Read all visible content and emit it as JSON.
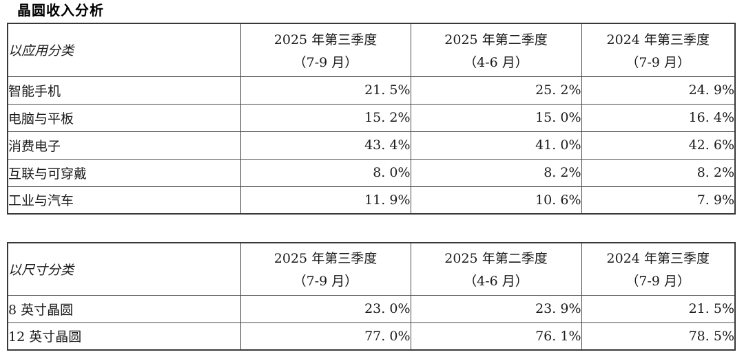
{
  "page": {
    "title": "晶圆收入分析"
  },
  "tables": [
    {
      "category_label": "以应用分类",
      "columns": [
        {
          "period": "2025 年第三季度",
          "months": "（7-9 月）"
        },
        {
          "period": "2025 年第二季度",
          "months": "（4-6 月）"
        },
        {
          "period": "2024 年第三季度",
          "months": "（7-9 月）"
        }
      ],
      "rows": [
        {
          "label": "智能手机",
          "values": [
            "21. 5%",
            "25. 2%",
            "24. 9%"
          ]
        },
        {
          "label": "电脑与平板",
          "values": [
            "15. 2%",
            "15. 0%",
            "16. 4%"
          ]
        },
        {
          "label": "消费电子",
          "values": [
            "43. 4%",
            "41. 0%",
            "42. 6%"
          ]
        },
        {
          "label": "互联与可穿戴",
          "values": [
            "8. 0%",
            "8. 2%",
            "8. 2%"
          ]
        },
        {
          "label": "工业与汽车",
          "values": [
            "11. 9%",
            "10. 6%",
            "7. 9%"
          ]
        }
      ]
    },
    {
      "category_label": "以尺寸分类",
      "columns": [
        {
          "period": "2025 年第三季度",
          "months": "（7-9 月）"
        },
        {
          "period": "2025 年第二季度",
          "months": "（4-6 月）"
        },
        {
          "period": "2024 年第三季度",
          "months": "（7-9 月）"
        }
      ],
      "rows": [
        {
          "label": "8 英寸晶圆",
          "values": [
            "23. 0%",
            "23. 9%",
            "21. 5%"
          ]
        },
        {
          "label": "12 英寸晶圆",
          "values": [
            "77. 0%",
            "76. 1%",
            "78. 5%"
          ]
        }
      ]
    }
  ],
  "colors": {
    "text": "#1a1a1a",
    "border_outer": "#383838",
    "border_inner": "#484848",
    "background": "#ffffff"
  }
}
